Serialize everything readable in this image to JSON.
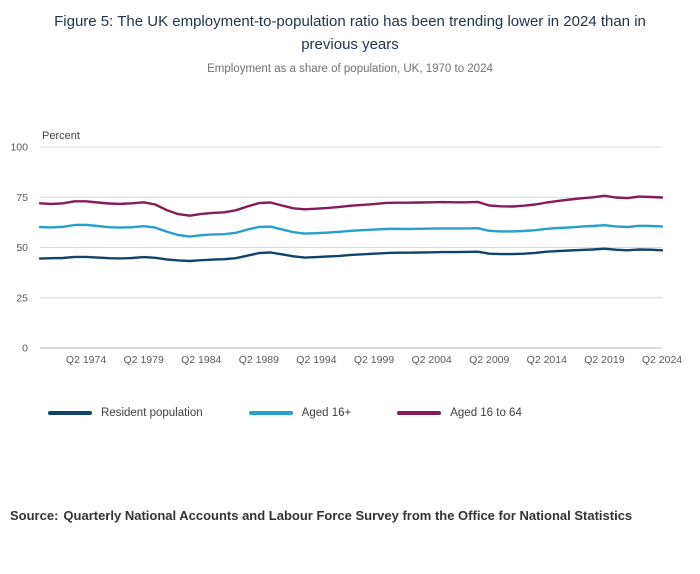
{
  "figure": {
    "title": "Figure 5: The UK employment-to-population ratio has been trending lower in 2024 than in previous years",
    "subtitle": "Employment as a share of population, UK, 1970 to 2024",
    "source_label": "Source:",
    "source_text": "Quarterly National Accounts and Labour Force Survey from the Office for National Statistics"
  },
  "chart_data": {
    "type": "line",
    "title": "Figure 5: The UK employment-to-population ratio has been trending lower in 2024 than in previous years",
    "subtitle": "Employment as a share of population, UK, 1970 to 2024",
    "xlabel": "",
    "ylabel": "Percent",
    "ylim": [
      0,
      100
    ],
    "y_ticks": [
      0,
      25,
      50,
      75,
      100
    ],
    "grid": true,
    "legend_position": "bottom",
    "x_tick_labels": [
      "Q2 1974",
      "Q2 1979",
      "Q2 1984",
      "Q2 1989",
      "Q2 1994",
      "Q2 1999",
      "Q2 2004",
      "Q2 2009",
      "Q2 2014",
      "Q2 2019",
      "Q2 2024"
    ],
    "x_unit": "year (Q2 of each year)",
    "x": [
      1970,
      1971,
      1972,
      1973,
      1974,
      1975,
      1976,
      1977,
      1978,
      1979,
      1980,
      1981,
      1982,
      1983,
      1984,
      1985,
      1986,
      1987,
      1988,
      1989,
      1990,
      1991,
      1992,
      1993,
      1994,
      1995,
      1996,
      1997,
      1998,
      1999,
      2000,
      2001,
      2002,
      2003,
      2004,
      2005,
      2006,
      2007,
      2008,
      2009,
      2010,
      2011,
      2012,
      2013,
      2014,
      2015,
      2016,
      2017,
      2018,
      2019,
      2020,
      2021,
      2022,
      2023,
      2024
    ],
    "series": [
      {
        "name": "Resident population",
        "color": "#12436D",
        "values": [
          44.5,
          44.7,
          44.8,
          45.3,
          45.3,
          45.0,
          44.7,
          44.6,
          44.8,
          45.2,
          44.9,
          44.1,
          43.6,
          43.3,
          43.7,
          44.0,
          44.2,
          44.7,
          45.9,
          47.2,
          47.5,
          46.6,
          45.6,
          45.0,
          45.2,
          45.5,
          45.8,
          46.3,
          46.6,
          46.9,
          47.2,
          47.4,
          47.4,
          47.5,
          47.6,
          47.7,
          47.7,
          47.8,
          47.9,
          46.9,
          46.7,
          46.7,
          46.9,
          47.3,
          47.9,
          48.2,
          48.5,
          48.8,
          49.0,
          49.4,
          48.9,
          48.6,
          49.0,
          48.9,
          48.6
        ]
      },
      {
        "name": "Aged 16+",
        "color": "#27A0CC",
        "values": [
          60.2,
          60.0,
          60.3,
          61.2,
          61.3,
          60.7,
          60.1,
          59.9,
          60.1,
          60.6,
          59.9,
          57.9,
          56.2,
          55.4,
          56.1,
          56.5,
          56.6,
          57.3,
          58.9,
          60.2,
          60.4,
          59.0,
          57.6,
          56.9,
          57.1,
          57.4,
          57.8,
          58.3,
          58.6,
          58.9,
          59.2,
          59.3,
          59.2,
          59.3,
          59.4,
          59.5,
          59.5,
          59.5,
          59.6,
          58.3,
          58.0,
          58.0,
          58.2,
          58.6,
          59.3,
          59.7,
          60.0,
          60.4,
          60.7,
          61.1,
          60.5,
          60.2,
          60.8,
          60.7,
          60.5
        ]
      },
      {
        "name": "Aged 16 to 64",
        "color": "#871A5B",
        "values": [
          72.0,
          71.7,
          72.0,
          73.0,
          73.0,
          72.4,
          71.9,
          71.7,
          72.0,
          72.5,
          71.4,
          68.6,
          66.6,
          65.8,
          66.7,
          67.2,
          67.5,
          68.5,
          70.4,
          72.1,
          72.4,
          70.9,
          69.5,
          69.0,
          69.3,
          69.7,
          70.2,
          70.8,
          71.2,
          71.6,
          72.2,
          72.3,
          72.3,
          72.4,
          72.5,
          72.6,
          72.5,
          72.5,
          72.7,
          70.9,
          70.5,
          70.4,
          70.8,
          71.4,
          72.4,
          73.2,
          73.9,
          74.5,
          75.0,
          75.7,
          74.9,
          74.6,
          75.3,
          75.1,
          74.9
        ]
      }
    ],
    "style": {
      "gridline_color": "#d9d9d9",
      "axis_color": "#b3b3b3"
    }
  }
}
